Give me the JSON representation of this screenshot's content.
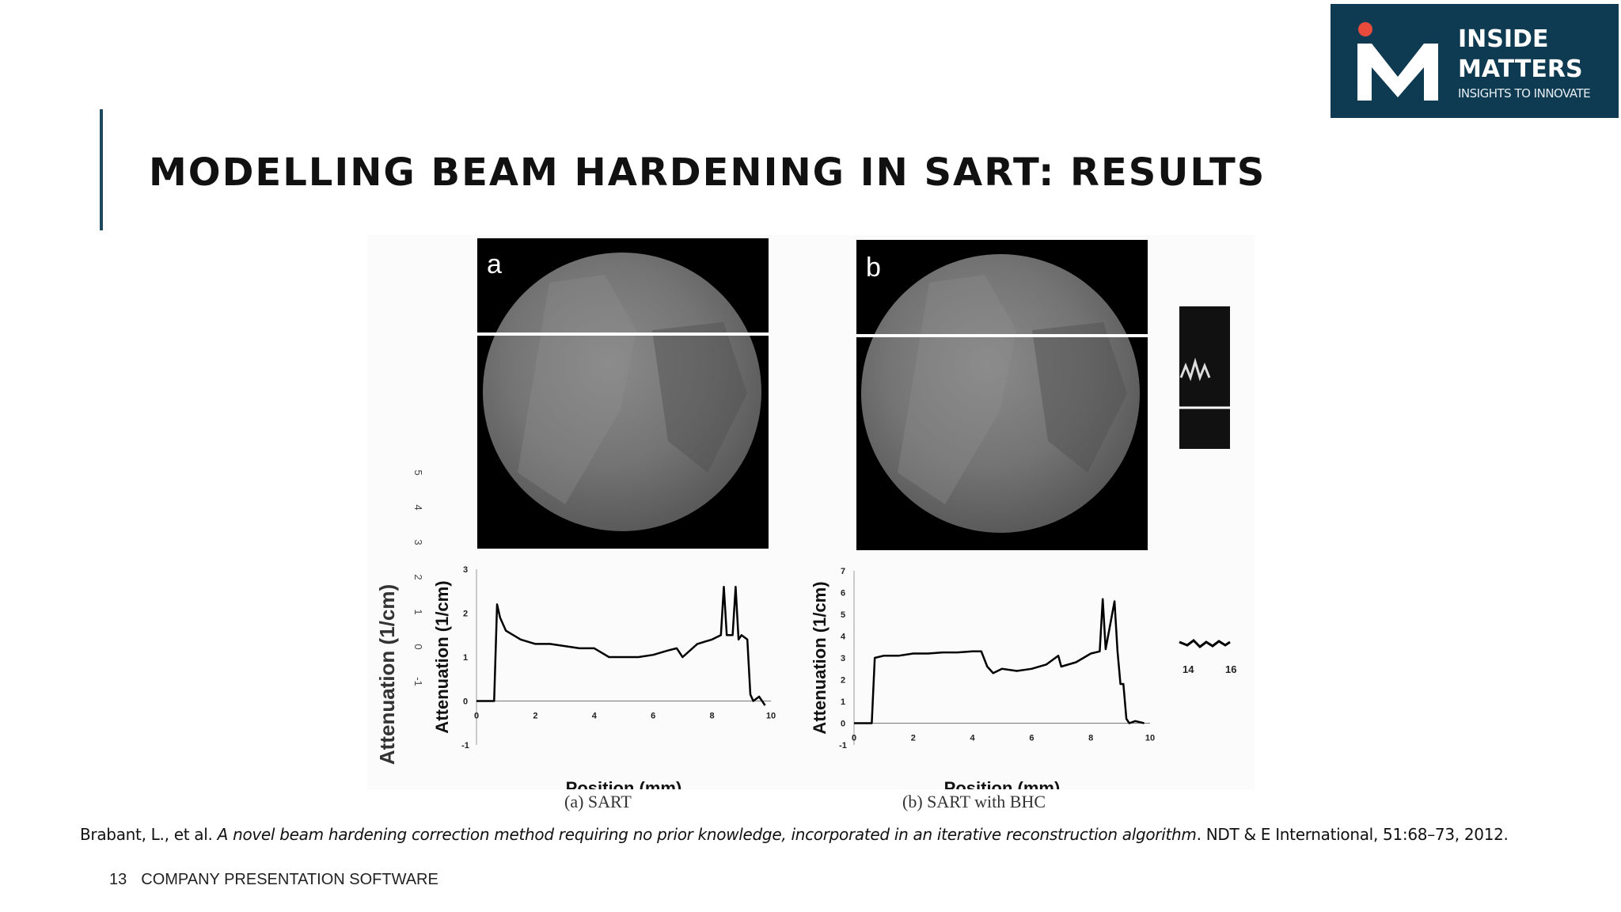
{
  "slide": {
    "title": "MODELLING BEAM HARDENING IN SART: RESULTS",
    "page_number": "13",
    "footer_text": "COMPANY PRESENTATION SOFTWARE"
  },
  "logo": {
    "line1": "INSIDE",
    "line2": "MATTERS",
    "tagline": "INSIGHTS TO INNOVATE",
    "colors": {
      "background": "#0e3a52",
      "dot": "#e84a3c"
    }
  },
  "figure": {
    "panel_a_letter": "a",
    "panel_b_letter": "b",
    "caption_a": "(a) SART",
    "caption_b": "(b) SART with BHC",
    "partial_right_ticks": [
      "14",
      "16"
    ],
    "background_ylabel": "Attenuation (1/cm)",
    "background_yticks": [
      "5",
      "4",
      "3",
      "2",
      "1",
      "0",
      "-1"
    ]
  },
  "citation": {
    "authors": "Brabant, L., et al.",
    "title": "A novel beam hardening correction method requiring no prior knowledge, incorporated in an iterative reconstruction algorithm",
    "source": ". NDT & E International, 51:68–73, 2012."
  },
  "chart_data": [
    {
      "type": "line",
      "panel": "a",
      "xlabel": "Position (mm)",
      "ylabel": "Attenuation (1/cm)",
      "xlim": [
        0,
        10
      ],
      "ylim": [
        -1,
        3
      ],
      "xticks": [
        "0",
        "2",
        "4",
        "6",
        "8",
        "10"
      ],
      "yticks": [
        "-1",
        "0",
        "1",
        "2",
        "3"
      ],
      "x": [
        0,
        0.6,
        0.7,
        0.8,
        1.0,
        1.5,
        2,
        2.5,
        3,
        3.5,
        4,
        4.5,
        5,
        5.5,
        6,
        6.5,
        6.8,
        7,
        7.5,
        8,
        8.3,
        8.4,
        8.5,
        8.7,
        8.8,
        8.9,
        9.0,
        9.2,
        9.3,
        9.4,
        9.6,
        9.8
      ],
      "y": [
        0,
        0,
        2.2,
        1.9,
        1.6,
        1.4,
        1.3,
        1.3,
        1.25,
        1.2,
        1.2,
        1.0,
        1.0,
        1.0,
        1.05,
        1.15,
        1.2,
        1.0,
        1.3,
        1.4,
        1.5,
        2.6,
        1.5,
        1.5,
        2.6,
        1.4,
        1.5,
        1.4,
        0.15,
        0.0,
        0.1,
        -0.1
      ]
    },
    {
      "type": "line",
      "panel": "b",
      "xlabel": "Position (mm)",
      "ylabel": "Attenuation (1/cm)",
      "xlim": [
        0,
        10
      ],
      "ylim": [
        -1,
        7
      ],
      "xticks": [
        "0",
        "2",
        "4",
        "6",
        "8",
        "10"
      ],
      "yticks": [
        "-1",
        "0",
        "1",
        "2",
        "3",
        "4",
        "5",
        "6",
        "7"
      ],
      "x": [
        0,
        0.6,
        0.7,
        1.0,
        1.5,
        2,
        2.5,
        3,
        3.5,
        4,
        4.3,
        4.5,
        4.7,
        5,
        5.5,
        6,
        6.5,
        6.9,
        7,
        7.5,
        8,
        8.3,
        8.4,
        8.5,
        8.8,
        8.9,
        9.0,
        9.1,
        9.2,
        9.3,
        9.5,
        9.8
      ],
      "y": [
        0,
        0,
        3.0,
        3.1,
        3.1,
        3.2,
        3.2,
        3.25,
        3.25,
        3.3,
        3.3,
        2.6,
        2.3,
        2.5,
        2.4,
        2.5,
        2.7,
        3.1,
        2.6,
        2.8,
        3.2,
        3.3,
        5.7,
        3.4,
        5.6,
        3.3,
        1.8,
        1.8,
        0.2,
        0.0,
        0.1,
        0.0
      ]
    }
  ]
}
